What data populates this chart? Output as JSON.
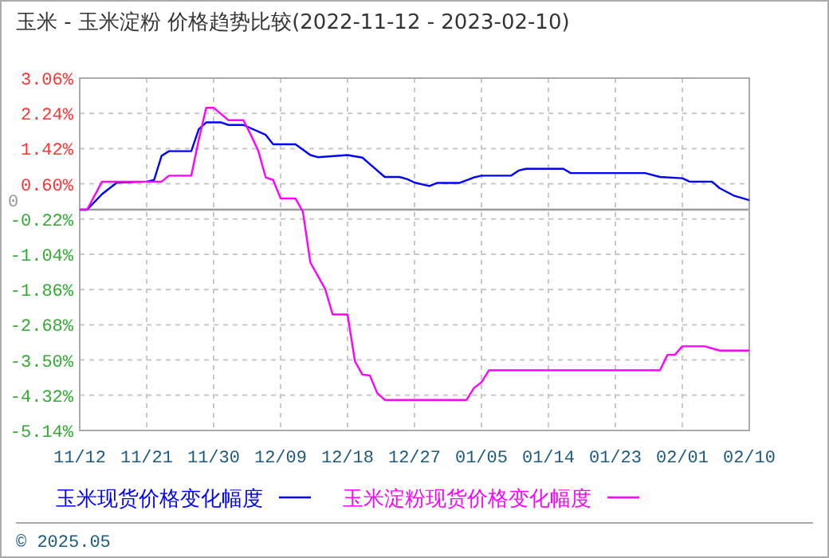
{
  "chart_data": {
    "type": "line",
    "title": "玉米 - 玉米淀粉 价格趋势比较(2022-11-12 - 2023-02-10)",
    "xlim": [
      "2022-11-12",
      "2023-02-10"
    ],
    "xticks": [
      {
        "value": "2022-11-12",
        "label": "11/12"
      },
      {
        "value": "2022-11-21",
        "label": "11/21"
      },
      {
        "value": "2022-11-30",
        "label": "11/30"
      },
      {
        "value": "2022-12-09",
        "label": "12/09"
      },
      {
        "value": "2022-12-18",
        "label": "12/18"
      },
      {
        "value": "2022-12-27",
        "label": "12/27"
      },
      {
        "value": "2023-01-05",
        "label": "01/05"
      },
      {
        "value": "2023-01-14",
        "label": "01/14"
      },
      {
        "value": "2023-01-23",
        "label": "01/23"
      },
      {
        "value": "2023-02-01",
        "label": "02/01"
      },
      {
        "value": "2023-02-10",
        "label": "02/10"
      }
    ],
    "ylim": [
      -5.14,
      3.06
    ],
    "yticks": [
      {
        "value": -5.14,
        "label": "-5.14%"
      },
      {
        "value": -4.32,
        "label": "-4.32%"
      },
      {
        "value": -3.5,
        "label": "-3.50%"
      },
      {
        "value": -2.68,
        "label": "-2.68%"
      },
      {
        "value": -1.86,
        "label": "-1.86%"
      },
      {
        "value": -1.04,
        "label": "-1.04%"
      },
      {
        "value": -0.22,
        "label": "-0.22%"
      },
      {
        "value": 0.6,
        "label": "0.60%"
      },
      {
        "value": 1.42,
        "label": "1.42%"
      },
      {
        "value": 2.24,
        "label": "2.24%"
      },
      {
        "value": 3.06,
        "label": "3.06%"
      }
    ],
    "grid": true,
    "legend": "bottom",
    "line_style": "solid",
    "marker": "none",
    "ref_lines": [
      {
        "axis": "y",
        "value": 0,
        "label": "0",
        "color": "#999999"
      }
    ],
    "annotations": [
      "© 2025.05"
    ],
    "series": [
      {
        "name": "玉米现货价格变化幅度",
        "color": "#0000ff",
        "x": [
          "2022-11-12",
          "2022-11-13",
          "2022-11-15",
          "2022-11-17",
          "2022-11-21",
          "2022-11-22",
          "2022-11-23",
          "2022-11-24",
          "2022-11-27",
          "2022-11-28",
          "2022-11-29",
          "2022-12-01",
          "2022-12-02",
          "2022-12-04",
          "2022-12-07",
          "2022-12-08",
          "2022-12-11",
          "2022-12-13",
          "2022-12-14",
          "2022-12-18",
          "2022-12-20",
          "2022-12-21",
          "2022-12-23",
          "2022-12-25",
          "2022-12-26",
          "2022-12-27",
          "2022-12-29",
          "2022-12-30",
          "2023-01-02",
          "2023-01-04",
          "2023-01-05",
          "2023-01-09",
          "2023-01-10",
          "2023-01-11",
          "2023-01-16",
          "2023-01-17",
          "2023-01-27",
          "2023-01-29",
          "2023-02-01",
          "2023-02-02",
          "2023-02-05",
          "2023-02-06",
          "2023-02-08",
          "2023-02-10"
        ],
        "values": [
          0,
          0,
          0.36,
          0.63,
          0.65,
          0.69,
          1.25,
          1.36,
          1.36,
          1.87,
          2.03,
          2.03,
          1.97,
          1.97,
          1.74,
          1.52,
          1.52,
          1.27,
          1.22,
          1.27,
          1.21,
          1.06,
          0.76,
          0.76,
          0.71,
          0.63,
          0.55,
          0.62,
          0.62,
          0.75,
          0.79,
          0.79,
          0.91,
          0.95,
          0.95,
          0.85,
          0.85,
          0.76,
          0.73,
          0.65,
          0.65,
          0.5,
          0.32,
          0.22
        ]
      },
      {
        "name": "玉米淀粉现货价格变化幅度",
        "color": "#ff00ff",
        "x": [
          "2022-11-12",
          "2022-11-13",
          "2022-11-15",
          "2022-11-23",
          "2022-11-24",
          "2022-11-27",
          "2022-11-28",
          "2022-11-29",
          "2022-11-30",
          "2022-12-02",
          "2022-12-04",
          "2022-12-05",
          "2022-12-06",
          "2022-12-07",
          "2022-12-08",
          "2022-12-09",
          "2022-12-11",
          "2022-12-12",
          "2022-12-13",
          "2022-12-14",
          "2022-12-15",
          "2022-12-16",
          "2022-12-18",
          "2022-12-19",
          "2022-12-20",
          "2022-12-21",
          "2022-12-22",
          "2022-12-23",
          "2023-01-03",
          "2023-01-04",
          "2023-01-05",
          "2023-01-06",
          "2023-01-29",
          "2023-01-30",
          "2023-01-31",
          "2023-02-01",
          "2023-02-04",
          "2023-02-06",
          "2023-02-10"
        ],
        "values": [
          0,
          0,
          0.65,
          0.65,
          0.79,
          0.79,
          1.62,
          2.37,
          2.37,
          2.08,
          2.08,
          1.74,
          1.37,
          0.75,
          0.69,
          0.26,
          0.26,
          -0.05,
          -1.23,
          -1.54,
          -1.85,
          -2.44,
          -2.44,
          -3.53,
          -3.84,
          -3.86,
          -4.27,
          -4.43,
          -4.43,
          -4.15,
          -4.02,
          -3.74,
          -3.74,
          -3.38,
          -3.38,
          -3.18,
          -3.18,
          -3.28,
          -3.28
        ]
      }
    ]
  }
}
